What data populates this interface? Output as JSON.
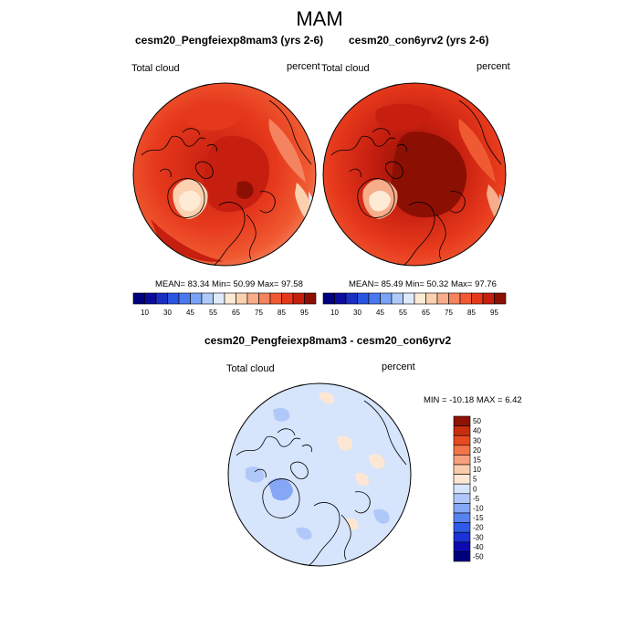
{
  "figure": {
    "title": "MAM",
    "colors": {
      "full": [
        "#00007f",
        "#0c0c9c",
        "#1a2fc2",
        "#2a55e0",
        "#4a78f0",
        "#7aa2f6",
        "#aecaf9",
        "#dfeafd",
        "#fdebd6",
        "#fbd1b0",
        "#f7ad8a",
        "#f4835f",
        "#f05a32",
        "#e6391c",
        "#c61f10",
        "#8c0f03"
      ],
      "diff": [
        "#00007f",
        "#0a0ab0",
        "#1b32d6",
        "#2f5ae8",
        "#5882f0",
        "#86a7f5",
        "#b0c8f9",
        "#d6e4fc",
        "#fde7d4",
        "#fbcbad",
        "#f7a07f",
        "#f27449",
        "#e74a22",
        "#c72e0e",
        "#8f1304"
      ]
    }
  },
  "chart_data": [
    {
      "type": "polar-contour-map",
      "title": "cesm20_Pengfeiexp8mam3 (yrs 2-6)",
      "left_label": "Total cloud",
      "right_label": "percent",
      "stats_text": "MEAN=  83.34  Min=  50.99  Max=  97.58",
      "stats": {
        "mean": 83.34,
        "min": 50.99,
        "max": 97.58
      },
      "colorbar_ticks": [
        "10",
        "30",
        "45",
        "55",
        "65",
        "75",
        "85",
        "95"
      ],
      "colorbar_levels": [
        10,
        20,
        30,
        40,
        45,
        50,
        55,
        60,
        65,
        70,
        75,
        80,
        85,
        90,
        95
      ]
    },
    {
      "type": "polar-contour-map",
      "title": "cesm20_con6yrv2 (yrs 2-6)",
      "left_label": "Total cloud",
      "right_label": "percent",
      "stats_text": "MEAN=  85.49  Min=  50.32  Max=  97.76",
      "stats": {
        "mean": 85.49,
        "min": 50.32,
        "max": 97.76
      },
      "colorbar_ticks": [
        "10",
        "30",
        "45",
        "55",
        "65",
        "75",
        "85",
        "95"
      ],
      "colorbar_levels": [
        10,
        20,
        30,
        40,
        45,
        50,
        55,
        60,
        65,
        70,
        75,
        80,
        85,
        90,
        95
      ]
    },
    {
      "type": "polar-contour-map",
      "title": "cesm20_Pengfeiexp8mam3 - cesm20_con6yrv2",
      "left_label": "Total cloud",
      "right_label": "percent",
      "stats_text": "MIN = -10.18 MAX =   6.42",
      "stats": {
        "min": -10.18,
        "max": 6.42
      },
      "colorbar_ticks": [
        "50",
        "40",
        "30",
        "20",
        "15",
        "10",
        "5",
        "0",
        "-5",
        "-10",
        "-15",
        "-20",
        "-30",
        "-40",
        "-50"
      ],
      "colorbar_levels": [
        -50,
        -40,
        -30,
        -20,
        -15,
        -10,
        -5,
        0,
        5,
        10,
        15,
        20,
        30,
        40,
        50
      ]
    }
  ]
}
